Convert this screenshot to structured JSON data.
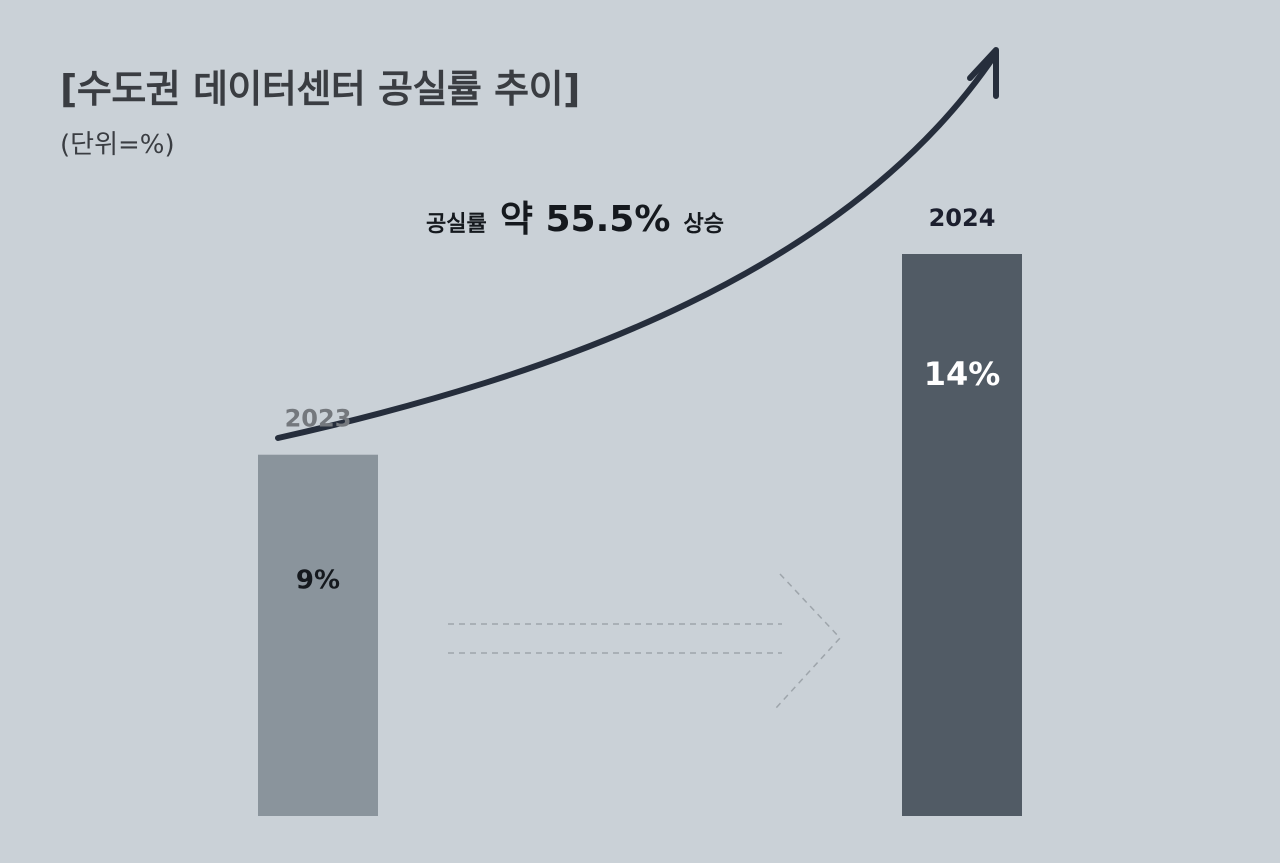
{
  "title": "[수도권 데이터센터 공실률 추이]",
  "unit_label": "(단위=%)",
  "annotation": {
    "prefix": "공실률",
    "emphasis": "약 55.5%",
    "suffix": "상승"
  },
  "colors": {
    "background": "#cad1d7",
    "bar_2023": "#8a949c",
    "bar_2024": "#515b65",
    "curve": "#262e3c",
    "dashed_arrow": "#9ea5ab"
  },
  "chart_data": {
    "type": "bar",
    "categories": [
      "2023",
      "2024"
    ],
    "values": [
      9,
      14
    ],
    "value_labels": [
      "9%",
      "14%"
    ],
    "title": "[수도권 데이터센터 공실률 추이]",
    "ylabel": "",
    "xlabel": "",
    "unit": "(단위=%)",
    "ylim": [
      0,
      14
    ],
    "grid": false,
    "legend": "none"
  }
}
